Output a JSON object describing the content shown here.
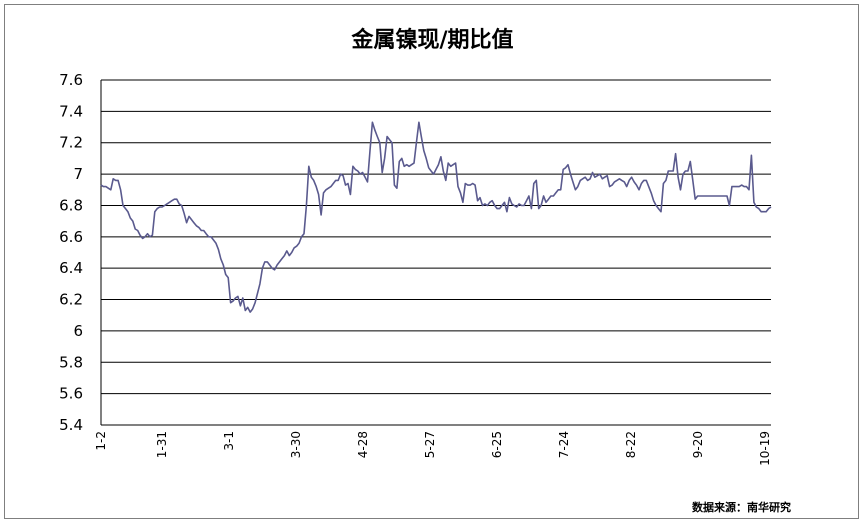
{
  "chart_data": {
    "type": "line",
    "title": "金属镍现/期比值",
    "source": "数据来源：南华研究",
    "ylim": [
      5.4,
      7.6
    ],
    "yticks": [
      "7.6",
      "7.4",
      "7.2",
      "7",
      "6.8",
      "6.6",
      "6.4",
      "6.2",
      "6",
      "5.8",
      "5.6",
      "5.4"
    ],
    "xticks": [
      "1-2",
      "1-31",
      "3-1",
      "3-30",
      "4-28",
      "5-27",
      "6-25",
      "7-24",
      "8-22",
      "9-20",
      "10-19"
    ],
    "grid": true,
    "line_color": "#5a5a8e",
    "series": [
      {
        "values": [
          6.93,
          6.92,
          6.92,
          6.91,
          6.9,
          6.97,
          6.96,
          6.96,
          6.9,
          6.8,
          6.78,
          6.76,
          6.72,
          6.7,
          6.65,
          6.64,
          6.61,
          6.59,
          6.6,
          6.62,
          6.6,
          6.61,
          6.76,
          6.78,
          6.79,
          6.79,
          6.8,
          6.81,
          6.82,
          6.83,
          6.84,
          6.84,
          6.81,
          6.8,
          6.75,
          6.69,
          6.73,
          6.71,
          6.69,
          6.67,
          6.66,
          6.64,
          6.64,
          6.62,
          6.6,
          6.6,
          6.58,
          6.56,
          6.52,
          6.46,
          6.42,
          6.36,
          6.34,
          6.18,
          6.19,
          6.21,
          6.22,
          6.16,
          6.21,
          6.13,
          6.15,
          6.12,
          6.14,
          6.18,
          6.24,
          6.3,
          6.4,
          6.44,
          6.44,
          6.42,
          6.4,
          6.39,
          6.42,
          6.44,
          6.46,
          6.48,
          6.51,
          6.48,
          6.5,
          6.53,
          6.54,
          6.56,
          6.6,
          6.62,
          6.8,
          7.05,
          6.98,
          6.96,
          6.92,
          6.87,
          6.74,
          6.88,
          6.9,
          6.91,
          6.92,
          6.94,
          6.96,
          6.96,
          7.0,
          6.99,
          6.93,
          6.94,
          6.87,
          7.05,
          7.03,
          7.02,
          7.0,
          7.01,
          6.98,
          6.95,
          7.15,
          7.33,
          7.28,
          7.24,
          7.2,
          7.01,
          7.1,
          7.24,
          7.22,
          7.2,
          6.93,
          6.91,
          7.08,
          7.1,
          7.05,
          7.06,
          7.05,
          7.06,
          7.07,
          7.2,
          7.33,
          7.24,
          7.15,
          7.1,
          7.04,
          7.02,
          7.0,
          7.03,
          7.06,
          7.11,
          7.02,
          6.96,
          7.07,
          7.05,
          7.06,
          7.07,
          6.92,
          6.88,
          6.82,
          6.94,
          6.93,
          6.93,
          6.94,
          6.93,
          6.83,
          6.85,
          6.8,
          6.81,
          6.8,
          6.82,
          6.83,
          6.8,
          6.78,
          6.78,
          6.8,
          6.82,
          6.76,
          6.85,
          6.81,
          6.8,
          6.79,
          6.81,
          6.8,
          6.8,
          6.83,
          6.86,
          6.78,
          6.94,
          6.96,
          6.78,
          6.8,
          6.86,
          6.82,
          6.84,
          6.86,
          6.86,
          6.88,
          6.9,
          6.9,
          7.03,
          7.04,
          7.06,
          7.0,
          6.95,
          6.9,
          6.92,
          6.96,
          6.97,
          6.98,
          6.96,
          6.97,
          7.01,
          6.98,
          6.99,
          7.0,
          6.97,
          6.98,
          6.99,
          6.92,
          6.93,
          6.95,
          6.96,
          6.97,
          6.96,
          6.95,
          6.92,
          6.96,
          6.98,
          6.95,
          6.93,
          6.9,
          6.94,
          6.96,
          6.96,
          6.92,
          6.88,
          6.83,
          6.8,
          6.78,
          6.76,
          6.94,
          6.96,
          7.02,
          7.02,
          7.02,
          7.13,
          6.98,
          6.9,
          7.0,
          7.02,
          7.02,
          7.08,
          6.96,
          6.84,
          6.86,
          6.86,
          6.86,
          6.86,
          6.86,
          6.86,
          6.86,
          6.86,
          6.86,
          6.86,
          6.86,
          6.86,
          6.86,
          6.8,
          6.92,
          6.92,
          6.92,
          6.92,
          6.93,
          6.92,
          6.92,
          6.9,
          7.12,
          6.82,
          6.79,
          6.78,
          6.76,
          6.76,
          6.76,
          6.78,
          6.79
        ]
      }
    ]
  }
}
